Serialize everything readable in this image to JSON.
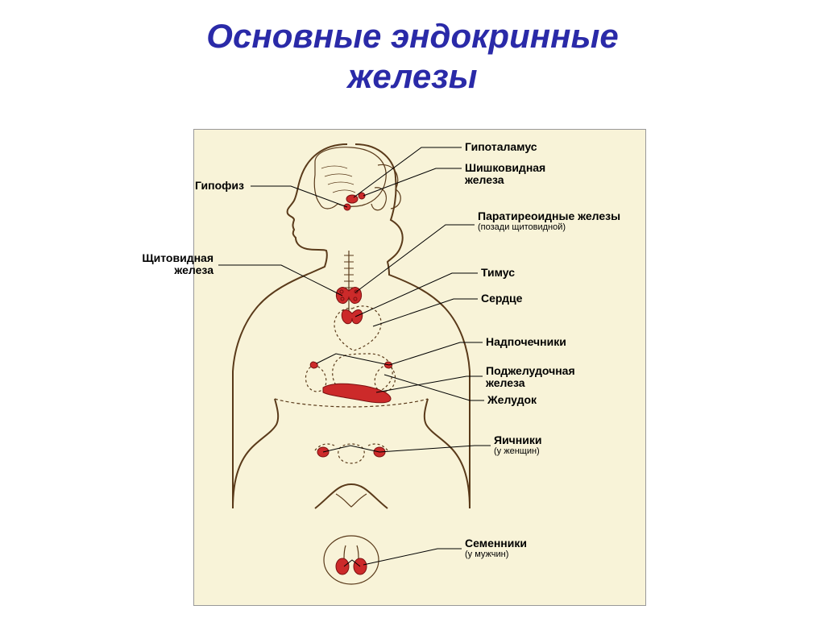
{
  "title_line1": "Основные эндокринные",
  "title_line2": "железы",
  "title_color": "#2a2aa8",
  "diagram": {
    "background": "#f8f3d8",
    "body_stroke": "#5a3a1a",
    "body_fill": "#f8f3d8",
    "organ_fill": "#cc2a2a",
    "organ_stroke": "#7a1010",
    "leader_stroke": "#000000",
    "label_color": "#000000",
    "label_fontsize": 14,
    "labels": {
      "hypothalamus": "Гипоталамус",
      "pituitary": "Гипофиз",
      "pineal": "Шишковидная железа",
      "thyroid": "Щитовидная железа",
      "parathyroid": "Паратиреоидные железы",
      "parathyroid_sub": "(позади щитовидной)",
      "thymus": "Тимус",
      "heart": "Сердце",
      "adrenals": "Надпочечники",
      "pancreas": "Поджелудочная железа",
      "stomach": "Желудок",
      "ovaries": "Яичники",
      "ovaries_sub": "(у женщин)",
      "testes": "Семенники",
      "testes_sub": "(у мужчин)"
    }
  }
}
